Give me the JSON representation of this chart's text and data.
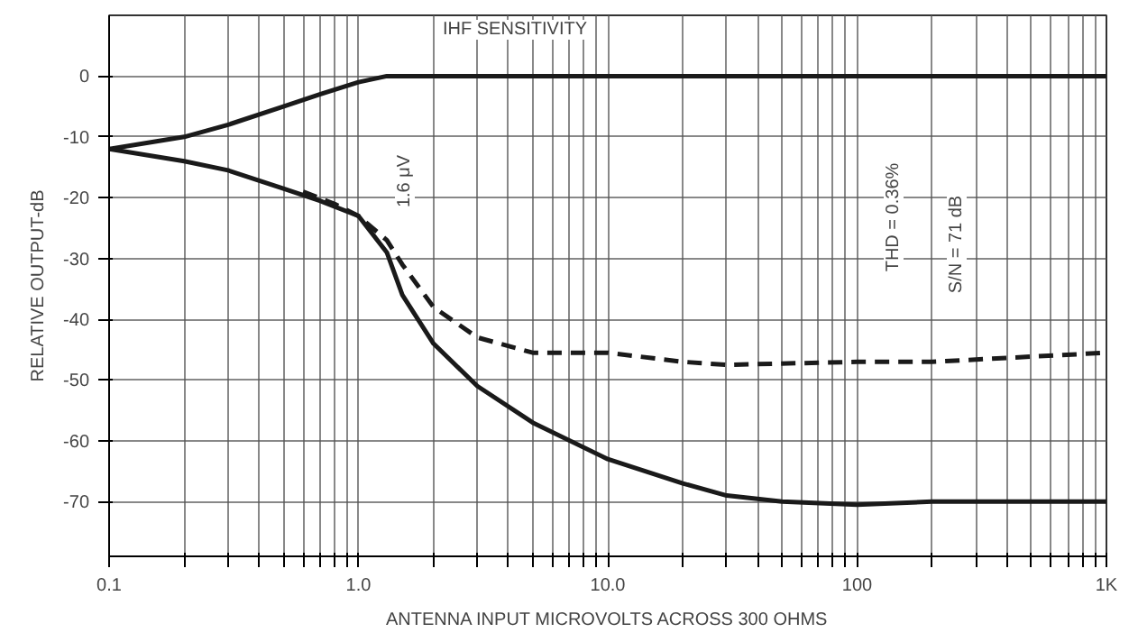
{
  "chart_data": {
    "type": "line",
    "xlabel": "ANTENNA INPUT MICROVOLTS ACROSS 300 OHMS",
    "ylabel": "RELATIVE OUTPUT-dB",
    "log": "x",
    "grid": true,
    "marker": "none",
    "xlim": [
      0.1,
      1000
    ],
    "ylim": [
      -79,
      10
    ],
    "xticks": [
      {
        "value": 0.1,
        "label": "0.1"
      },
      {
        "value": 0.2,
        "label": null
      },
      {
        "value": 0.3,
        "label": null
      },
      {
        "value": 0.4,
        "label": null
      },
      {
        "value": 0.5,
        "label": null
      },
      {
        "value": 0.6,
        "label": null
      },
      {
        "value": 0.7,
        "label": null
      },
      {
        "value": 0.8,
        "label": null
      },
      {
        "value": 0.9,
        "label": null
      },
      {
        "value": 1,
        "label": "1.0"
      },
      {
        "value": 2,
        "label": null
      },
      {
        "value": 3,
        "label": null
      },
      {
        "value": 4,
        "label": null
      },
      {
        "value": 5,
        "label": null
      },
      {
        "value": 6,
        "label": null
      },
      {
        "value": 7,
        "label": null
      },
      {
        "value": 8,
        "label": null
      },
      {
        "value": 9,
        "label": null
      },
      {
        "value": 10,
        "label": "10.0"
      },
      {
        "value": 20,
        "label": null
      },
      {
        "value": 30,
        "label": null
      },
      {
        "value": 40,
        "label": null
      },
      {
        "value": 50,
        "label": null
      },
      {
        "value": 60,
        "label": null
      },
      {
        "value": 70,
        "label": null
      },
      {
        "value": 80,
        "label": null
      },
      {
        "value": 90,
        "label": null
      },
      {
        "value": 100,
        "label": "100"
      },
      {
        "value": 200,
        "label": null
      },
      {
        "value": 300,
        "label": null
      },
      {
        "value": 400,
        "label": null
      },
      {
        "value": 500,
        "label": null
      },
      {
        "value": 600,
        "label": null
      },
      {
        "value": 700,
        "label": null
      },
      {
        "value": 800,
        "label": null
      },
      {
        "value": 900,
        "label": null
      },
      {
        "value": 1000,
        "label": "1K"
      }
    ],
    "yticks": [
      0,
      -10,
      -20,
      -30,
      -40,
      -50,
      -60,
      -70
    ],
    "series": [
      {
        "color": "#1a1a1a",
        "line_style": "solid",
        "x": [
          0.1,
          0.2,
          0.3,
          0.5,
          0.7,
          1.0,
          1.3,
          2,
          10,
          100,
          1000
        ],
        "values": [
          -12,
          -10,
          -8,
          -5,
          -3,
          -1,
          0,
          0,
          0,
          0,
          0
        ]
      },
      {
        "color": "#1a1a1a",
        "line_style": "solid",
        "x": [
          0.1,
          0.2,
          0.3,
          0.5,
          0.7,
          1.0,
          1.3,
          1.5,
          2,
          3,
          5,
          10,
          20,
          30,
          50,
          100,
          200,
          1000
        ],
        "values": [
          -12,
          -14,
          -15.5,
          -18.5,
          -20.5,
          -23,
          -29,
          -36,
          -44,
          -51,
          -57,
          -63,
          -67,
          -69,
          -70,
          -70.5,
          -70,
          -70
        ]
      },
      {
        "color": "#1a1a1a",
        "line_style": "dashed",
        "x": [
          0.6,
          0.8,
          1.0,
          1.3,
          1.5,
          2,
          3,
          5,
          10,
          20,
          30,
          100,
          200,
          1000
        ],
        "values": [
          -19,
          -21,
          -23,
          -27,
          -31,
          -38,
          -43,
          -45.5,
          -45.5,
          -47,
          -47.5,
          -47,
          -47,
          -45.5
        ]
      }
    ],
    "annotations": [
      "IHF SENSITIVITY",
      "1.6 μV",
      "THD = 0.36%",
      "S/N = 71 dB"
    ]
  }
}
